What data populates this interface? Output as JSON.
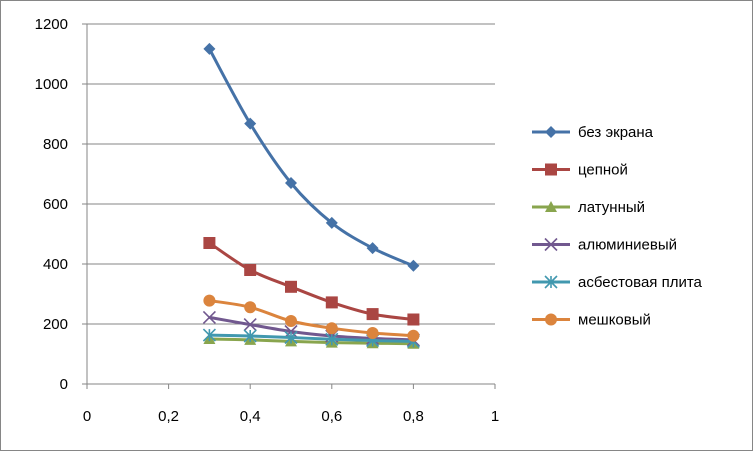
{
  "chart_data": {
    "type": "scatter",
    "x_ticks": [
      "0",
      "0,2",
      "0,4",
      "0,6",
      "0,8",
      "1"
    ],
    "y_ticks": [
      "0",
      "200",
      "400",
      "600",
      "800",
      "1000",
      "1200"
    ],
    "xlim": [
      0,
      1
    ],
    "ylim": [
      0,
      1200
    ],
    "grid": "horizontal",
    "legend_position": "right",
    "smooth_lines": true,
    "series": [
      {
        "name": "без экрана",
        "color": "#4572A7",
        "marker": "diamond",
        "x": [
          0.3,
          0.4,
          0.5,
          0.6,
          0.7,
          0.8
        ],
        "y": [
          1117,
          868,
          670,
          537,
          453,
          394
        ]
      },
      {
        "name": "цепной",
        "color": "#AA4643",
        "marker": "square",
        "x": [
          0.3,
          0.4,
          0.5,
          0.6,
          0.7,
          0.8
        ],
        "y": [
          470,
          380,
          324,
          272,
          233,
          215
        ]
      },
      {
        "name": "латунный",
        "color": "#89A54E",
        "marker": "triangle",
        "x": [
          0.3,
          0.4,
          0.5,
          0.6,
          0.7,
          0.8
        ],
        "y": [
          150,
          147,
          142,
          138,
          136,
          134
        ]
      },
      {
        "name": "алюминиевый",
        "color": "#71588F",
        "marker": "x",
        "x": [
          0.3,
          0.4,
          0.5,
          0.6,
          0.7,
          0.8
        ],
        "y": [
          222,
          198,
          175,
          160,
          152,
          147
        ]
      },
      {
        "name": "асбестовая плита",
        "color": "#4198AF",
        "marker": "star",
        "x": [
          0.3,
          0.4,
          0.5,
          0.6,
          0.7,
          0.8
        ],
        "y": [
          163,
          160,
          155,
          149,
          145,
          142
        ]
      },
      {
        "name": "мешковый",
        "color": "#DB843D",
        "marker": "circle",
        "x": [
          0.3,
          0.4,
          0.5,
          0.6,
          0.7,
          0.8
        ],
        "y": [
          278,
          256,
          210,
          186,
          170,
          161
        ]
      }
    ]
  }
}
